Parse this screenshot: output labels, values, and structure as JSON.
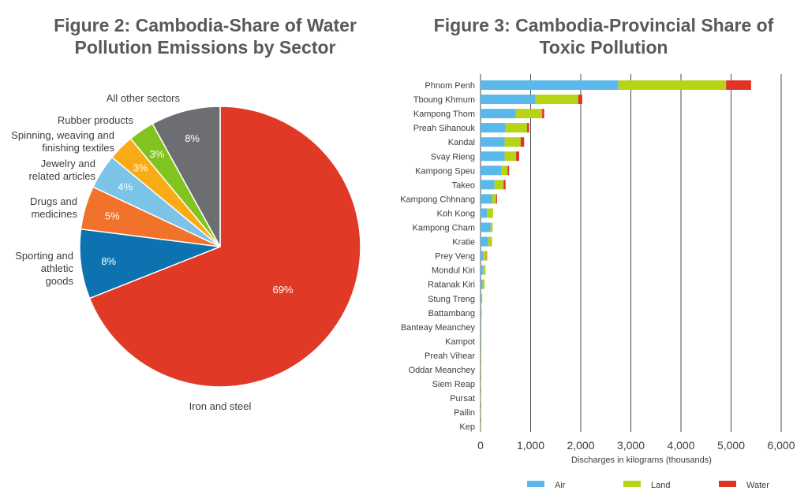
{
  "figures": {
    "pie_title": "Figure 2: Cambodia-Share of Water Pollution Emissions by Sector",
    "bar_title": "Figure 3: Cambodia-Provincial Share of Toxic Pollution"
  },
  "chart_data": [
    {
      "type": "pie",
      "title": "Figure 2: Cambodia-Share of Water Pollution Emissions by Sector",
      "slices": [
        {
          "label": "Iron and steel",
          "value": 69,
          "value_label": "69%",
          "color": "#e03a26"
        },
        {
          "label": "Sporting and athletic goods",
          "value": 8,
          "value_label": "8%",
          "color": "#0d72b0"
        },
        {
          "label": "Drugs and medicines",
          "value": 5,
          "value_label": "5%",
          "color": "#f0722b"
        },
        {
          "label": "Jewelry and related articles",
          "value": 4,
          "value_label": "4%",
          "color": "#7cc3e8"
        },
        {
          "label": "Spinning, weaving and finishing textiles",
          "value": 3,
          "value_label": "3%",
          "color": "#f8ab15"
        },
        {
          "label": "Rubber products",
          "value": 3,
          "value_label": "3%",
          "color": "#82c41f"
        },
        {
          "label": "All other sectors",
          "value": 8,
          "value_label": "8%",
          "color": "#6d6e71"
        }
      ]
    },
    {
      "type": "bar",
      "orientation": "horizontal",
      "stacked": true,
      "title": "Figure 3: Cambodia-Provincial Share of Toxic Pollution",
      "xlabel": "Discharges in kilograms (thousands)",
      "xlim": [
        0,
        6000
      ],
      "xticks": [
        0,
        1000,
        2000,
        3000,
        4000,
        5000,
        6000
      ],
      "xtick_labels": [
        "0",
        "1,000",
        "2,000",
        "3,000",
        "4,000",
        "5,000",
        "6,000"
      ],
      "grid": "vertical",
      "legend": "bottom",
      "categories": [
        "Phnom Penh",
        "Tboung Khmum",
        "Kampong Thom",
        "Preah Sihanouk",
        "Kandal",
        "Svay Rieng",
        "Kampong Speu",
        "Takeo",
        "Kampong Chhnang",
        "Koh Kong",
        "Kampong Cham",
        "Kratie",
        "Prey Veng",
        "Mondul Kiri",
        "Ratanak Kiri",
        "Stung Treng",
        "Battambang",
        "Banteay Meanchey",
        "Kampot",
        "Preah Vihear",
        "Oddar Meanchey",
        "Siem Reap",
        "Pursat",
        "Pailin",
        "Kep"
      ],
      "series": [
        {
          "name": "Air",
          "color": "#5bb8ea",
          "values": [
            2750,
            1100,
            700,
            500,
            480,
            480,
            420,
            280,
            230,
            130,
            200,
            150,
            60,
            50,
            40,
            15,
            10,
            10,
            8,
            5,
            3,
            2,
            1,
            1,
            1
          ]
        },
        {
          "name": "Land",
          "color": "#b7d315",
          "values": [
            2150,
            850,
            530,
            430,
            320,
            230,
            120,
            180,
            80,
            120,
            40,
            80,
            60,
            50,
            40,
            20,
            15,
            10,
            8,
            5,
            3,
            2,
            1,
            1,
            1
          ]
        },
        {
          "name": "Water",
          "color": "#df3426",
          "values": [
            500,
            80,
            40,
            40,
            70,
            60,
            30,
            40,
            20,
            0,
            0,
            0,
            10,
            0,
            0,
            0,
            0,
            0,
            0,
            0,
            0,
            0,
            0,
            0,
            0
          ]
        }
      ]
    }
  ]
}
